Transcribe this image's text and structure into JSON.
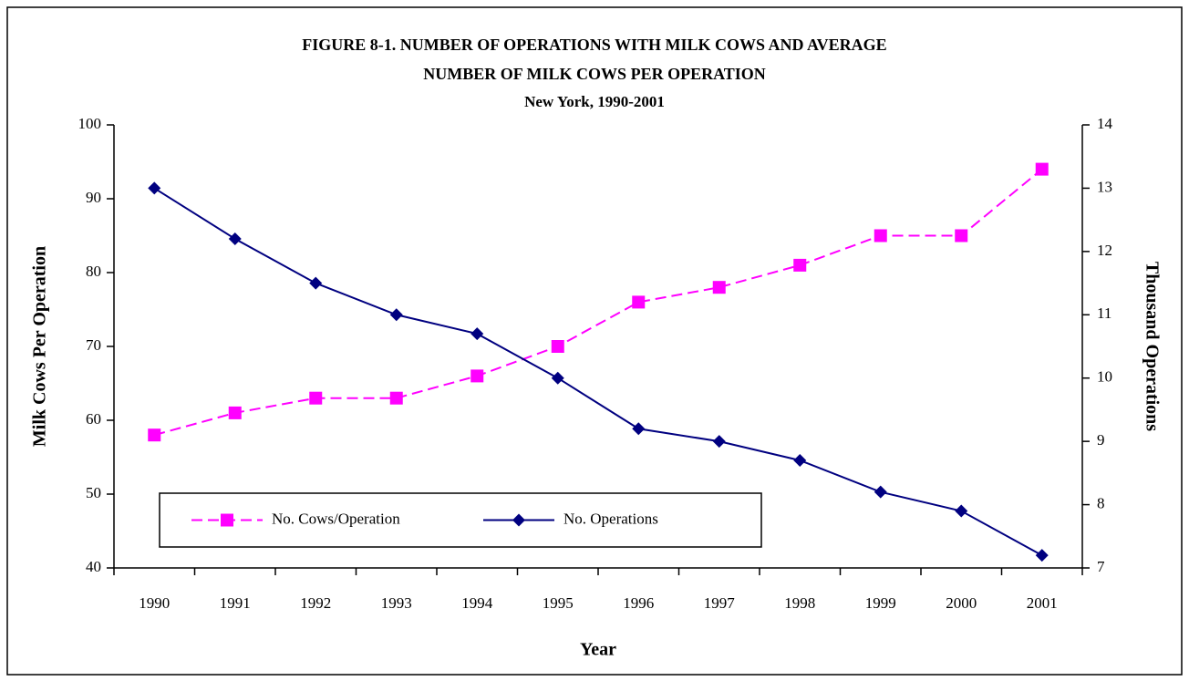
{
  "chart_data": {
    "type": "line",
    "title": [
      "FIGURE 8-1.  NUMBER OF OPERATIONS WITH MILK COWS AND AVERAGE",
      "NUMBER OF MILK COWS PER OPERATION"
    ],
    "subtitle": "New York, 1990-2001",
    "x_label": "Year",
    "y_label": "Milk Cows Per Operation",
    "y2_label": "Thousand Operations",
    "categories": [
      "1990",
      "1991",
      "1992",
      "1993",
      "1994",
      "1995",
      "1996",
      "1997",
      "1998",
      "1999",
      "2000",
      "2001"
    ],
    "series": [
      {
        "name": "No. Cows/Operation",
        "color": "#ff00ff",
        "marker": "square",
        "dash": true,
        "values": [
          58,
          61,
          63,
          63,
          66,
          70,
          76,
          78,
          81,
          85,
          85,
          94
        ]
      },
      {
        "name": "No. Operations",
        "color": "#000080",
        "marker": "diamond",
        "dash": false,
        "axis": "y2",
        "values": [
          13.0,
          12.2,
          11.5,
          11.0,
          10.7,
          10.0,
          9.2,
          9.0,
          8.7,
          8.2,
          7.9,
          7.2
        ]
      }
    ],
    "ylim": [
      40,
      100
    ],
    "yticks": [
      40,
      50,
      60,
      70,
      80,
      90,
      100
    ],
    "y2lim": [
      7,
      14
    ],
    "y2ticks": [
      7,
      8,
      9,
      10,
      11,
      12,
      13,
      14
    ],
    "legend": "lower-left",
    "grid": false
  }
}
